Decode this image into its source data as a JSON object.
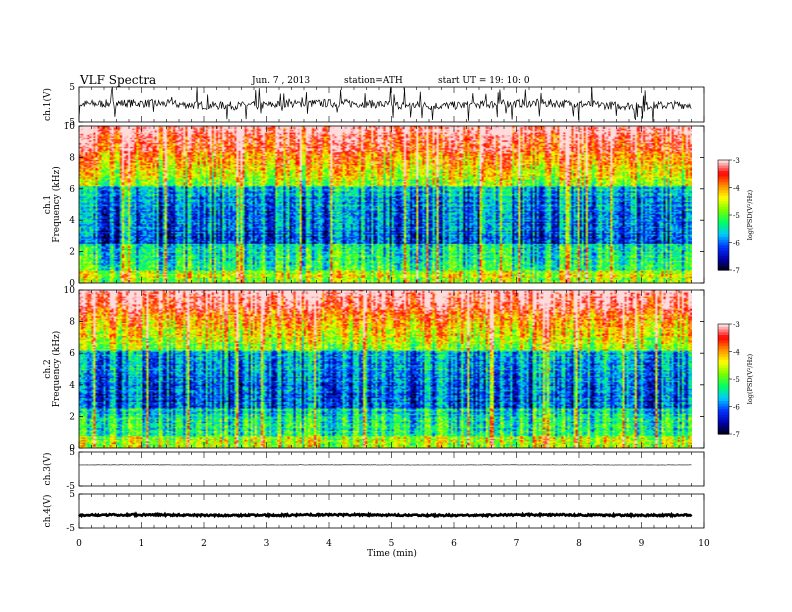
{
  "header": {
    "title": "VLF  Spectra",
    "date": "Jun. 7  , 2013",
    "station": "station=ATH",
    "start": "start  UT  =    19: 10: 0"
  },
  "chart_data": {
    "type": "heatmap",
    "xlabel": "Time  (min)",
    "xlim": [
      0,
      10
    ],
    "x_ticks": [
      "0",
      "1",
      "2",
      "3",
      "4",
      "5",
      "6",
      "7",
      "8",
      "9",
      "10"
    ],
    "data_extent_min": 9.8,
    "panels": [
      {
        "id": "ch1-waveform",
        "type": "line",
        "ylabel": "ch.1(V)",
        "ylim": [
          -5,
          5
        ],
        "y_ticks": [
          "5",
          "-5"
        ],
        "baseline": 0,
        "spread": 1.2,
        "spikes": 55
      },
      {
        "id": "ch1-spectrogram",
        "type": "heatmap",
        "ylabel_top": "ch.1",
        "ylabel": "Frequency  (kHz)",
        "ylim": [
          0,
          10
        ],
        "y_ticks": [
          "0",
          "2",
          "4",
          "6",
          "8",
          "10"
        ],
        "colorbar": {
          "label": "log(PSD(V²/Hz)",
          "range": [
            -7,
            -3
          ],
          "ticks": [
            "-3",
            "-4",
            "-5",
            "-6",
            "-7"
          ]
        }
      },
      {
        "id": "ch2-spectrogram",
        "type": "heatmap",
        "ylabel_top": "ch.2",
        "ylabel": "Frequency  (kHz)",
        "ylim": [
          0,
          10
        ],
        "y_ticks": [
          "0",
          "2",
          "4",
          "6",
          "8",
          "10"
        ],
        "colorbar": {
          "label": "log(PSD(V²/Hz)",
          "range": [
            -7,
            -3
          ],
          "ticks": [
            "-3",
            "-4",
            "-5",
            "-6",
            "-7"
          ]
        }
      },
      {
        "id": "ch3-waveform",
        "type": "line",
        "ylabel": "ch.3(V)",
        "ylim": [
          -5,
          5
        ],
        "y_ticks": [
          "5",
          "-5"
        ],
        "baseline": 1.2,
        "spread": 0.05,
        "spikes": 0
      },
      {
        "id": "ch4-waveform",
        "type": "line",
        "ylabel": "ch.4(V)",
        "ylim": [
          -5,
          5
        ],
        "y_ticks": [
          "5",
          "-5"
        ],
        "baseline": -1.2,
        "spread": 0.25,
        "spikes": 0
      }
    ]
  },
  "colors": {
    "axis": "#000000",
    "trace": "#000000",
    "colormap": [
      "#000000",
      "#0000aa",
      "#0033ff",
      "#00c8ff",
      "#00ff64",
      "#78ff00",
      "#ffff00",
      "#ff8c00",
      "#ff0000",
      "#ffdcdc"
    ]
  }
}
